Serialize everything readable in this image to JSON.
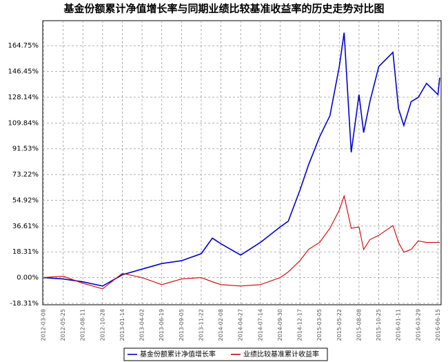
{
  "chart_data": {
    "type": "line",
    "title": "基金份额累计净值增长率与同期业绩比较基准收益率的历史走势对比图",
    "x": [
      "2012-03-08",
      "2012-05-25",
      "2012-08-11",
      "2012-10-28",
      "2013-01-14",
      "2013-04-02",
      "2013-06-19",
      "2013-09-05",
      "2013-11-22",
      "2014-01-05",
      "2014-02-08",
      "2014-04-27",
      "2014-07-14",
      "2014-09-30",
      "2014-11-01",
      "2014-12-17",
      "2015-01-20",
      "2015-03-05",
      "2015-04-15",
      "2015-05-22",
      "2015-06-10",
      "2015-07-08",
      "2015-08-08",
      "2015-08-26",
      "2015-09-20",
      "2015-10-25",
      "2015-12-20",
      "2016-01-11",
      "2016-02-01",
      "2016-03-01",
      "2016-03-29",
      "2016-05-01",
      "2016-06-15",
      "2016-06-22"
    ],
    "series": [
      {
        "name": "基金份额累计净值增长率",
        "color": "#0000cc",
        "values": [
          0,
          -1,
          -3,
          -6,
          2,
          6,
          10,
          12,
          17,
          28,
          24,
          16,
          25,
          36,
          40,
          62,
          80,
          100,
          115,
          150,
          174,
          89,
          130,
          103,
          125,
          150,
          160,
          120,
          108,
          125,
          128,
          138,
          130,
          142
        ]
      },
      {
        "name": "业绩比较基准累计收益率",
        "color": "#cc0000",
        "values": [
          0,
          1,
          -4,
          -8,
          3,
          0,
          -5,
          -1,
          0,
          -3,
          -5,
          -6,
          -5,
          0,
          4,
          12,
          20,
          25,
          35,
          48,
          58,
          35,
          36,
          20,
          27,
          30,
          37,
          25,
          18,
          20,
          26,
          25,
          25,
          25
        ]
      }
    ],
    "xlim": [
      "2012-03-08",
      "2016-06-22"
    ],
    "xticks": [
      "2012-03-08",
      "2012-05-25",
      "2012-08-11",
      "2012-10-28",
      "2013-01-14",
      "2013-04-02",
      "2013-06-19",
      "2013-09-05",
      "2013-11-22",
      "2014-02-08",
      "2014-04-27",
      "2014-07-14",
      "2014-09-30",
      "2014-12-17",
      "2015-03-05",
      "2015-05-22",
      "2015-08-08",
      "2015-10-25",
      "2016-01-11",
      "2016-03-29",
      "2016-06-15"
    ],
    "ylim": [
      -19.3,
      182.5
    ],
    "yticks": [
      {
        "value": -18.31,
        "label": "-18.31%"
      },
      {
        "value": 0,
        "label": "0.00%"
      },
      {
        "value": 18.31,
        "label": "18.31%"
      },
      {
        "value": 36.61,
        "label": "36.61%"
      },
      {
        "value": 54.92,
        "label": "54.92%"
      },
      {
        "value": 73.22,
        "label": "73.22%"
      },
      {
        "value": 91.53,
        "label": "91.53%"
      },
      {
        "value": 109.84,
        "label": "109.84%"
      },
      {
        "value": 128.14,
        "label": "128.14%"
      },
      {
        "value": 146.45,
        "label": "146.45%"
      },
      {
        "value": 164.75,
        "label": "164.75%"
      }
    ],
    "grid": true
  }
}
